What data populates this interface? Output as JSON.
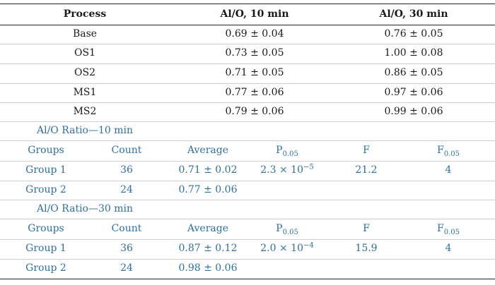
{
  "top_table": {
    "headers": [
      "Process",
      "Al/O, 10 min",
      "Al/O, 30 min"
    ],
    "rows": [
      {
        "process": "Base",
        "al_o_10": "0.69 ± 0.04",
        "al_o_30": "0.76 ± 0.05"
      },
      {
        "process": "OS1",
        "al_o_10": "0.73 ± 0.05",
        "al_o_30": "1.00 ± 0.08"
      },
      {
        "process": "OS2",
        "al_o_10": "0.71 ± 0.05",
        "al_o_30": "0.86 ± 0.05"
      },
      {
        "process": "MS1",
        "al_o_10": "0.77 ± 0.06",
        "al_o_30": "0.97 ± 0.06"
      },
      {
        "process": "MS2",
        "al_o_10": "0.79 ± 0.06",
        "al_o_30": "0.99 ± 0.06"
      }
    ]
  },
  "stats_sections": [
    {
      "title": "Al/O Ratio—10 min",
      "headers": {
        "groups": "Groups",
        "count": "Count",
        "average": "Average",
        "p_base": "P",
        "p_sub": "0.05",
        "f": "F",
        "f_base": "F",
        "f_sub": "0.05"
      },
      "rows": [
        {
          "group": "Group 1",
          "count": "36",
          "average": "0.71 ± 0.02",
          "p_mant": "2.3 × 10",
          "p_exp": "−5",
          "f": "21.2",
          "f_crit": "4"
        },
        {
          "group": "Group 2",
          "count": "24",
          "average": "0.77 ± 0.06",
          "p_mant": "",
          "p_exp": "",
          "f": "",
          "f_crit": ""
        }
      ]
    },
    {
      "title": "Al/O Ratio—30 min",
      "headers": {
        "groups": "Groups",
        "count": "Count",
        "average": "Average",
        "p_base": "P",
        "p_sub": "0.05",
        "f": "F",
        "f_base": "F",
        "f_sub": "0.05"
      },
      "rows": [
        {
          "group": "Group 1",
          "count": "36",
          "average": "0.87 ± 0.12",
          "p_mant": "2.0 × 10",
          "p_exp": "−4",
          "f": "15.9",
          "f_crit": "4"
        },
        {
          "group": "Group 2",
          "count": "24",
          "average": "0.98 ± 0.06",
          "p_mant": "",
          "p_exp": "",
          "f": "",
          "f_crit": ""
        }
      ]
    }
  ],
  "colors": {
    "text": "#1a1a1a",
    "accent_blue": "#2f6f9e",
    "rule_light": "#cfcfcf",
    "rule_heavy": "#222222"
  }
}
